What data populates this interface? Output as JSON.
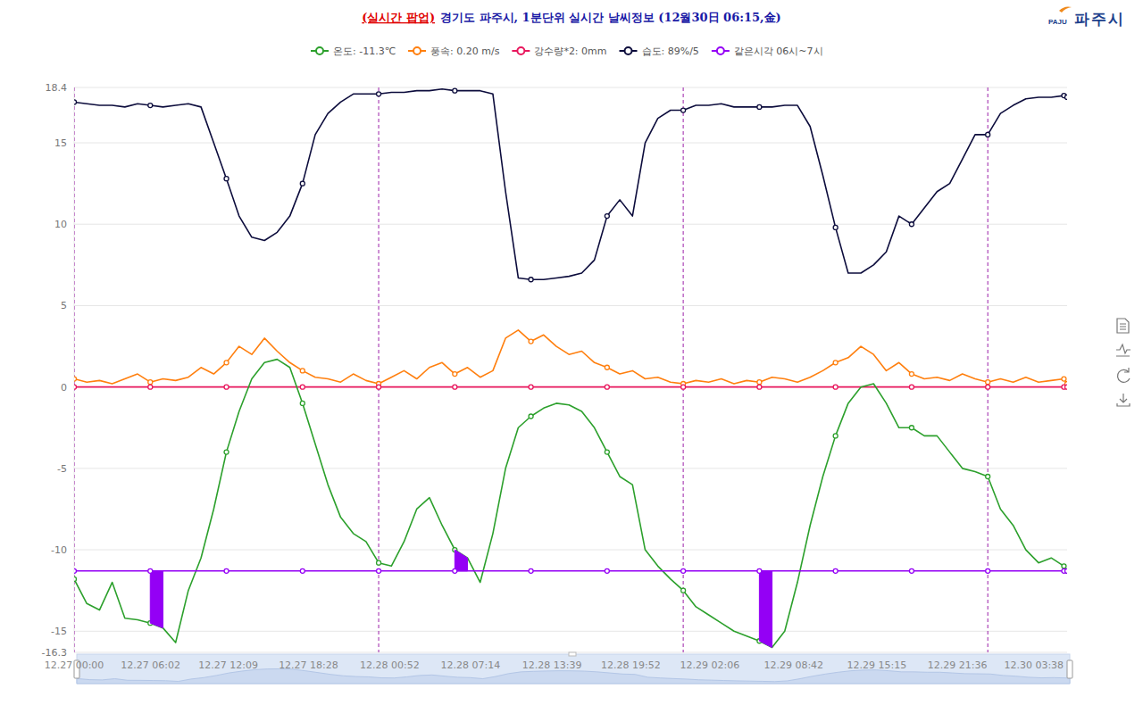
{
  "chart_data": {
    "type": "line",
    "title_prefix": "(실시간 팝업)",
    "title": "경기도 파주시, 1분단위 실시간 날씨정보 (12월30日 06:15,金)",
    "logo_mark": "PAJU",
    "logo_text": "파주시",
    "grid": true,
    "legend": "top",
    "xlim": [
      0,
      78.25
    ],
    "ylim": [
      -16.3,
      18.4
    ],
    "yticks": [
      -16.3,
      -15,
      -10,
      -5,
      0,
      5,
      10,
      15,
      18.4
    ],
    "xticks": [
      {
        "value": 0,
        "label": "12.27 00:00"
      },
      {
        "value": 6.03,
        "label": "12.27 06:02"
      },
      {
        "value": 12.15,
        "label": "12.27 12:09"
      },
      {
        "value": 18.47,
        "label": "12.27 18:28"
      },
      {
        "value": 24.87,
        "label": "12.28 00:52"
      },
      {
        "value": 31.23,
        "label": "12.28 07:14"
      },
      {
        "value": 37.65,
        "label": "12.28 13:39"
      },
      {
        "value": 43.87,
        "label": "12.28 19:52"
      },
      {
        "value": 50.1,
        "label": "12.29 02:06"
      },
      {
        "value": 56.7,
        "label": "12.29 08:42"
      },
      {
        "value": 63.25,
        "label": "12.29 15:15"
      },
      {
        "value": 69.6,
        "label": "12.29 21:36"
      },
      {
        "value": 75.63,
        "label": "12.30 03:38"
      }
    ],
    "day_lines": [
      0,
      24,
      48,
      72
    ],
    "x": [
      0,
      1,
      2,
      3,
      4,
      5,
      6,
      7,
      8,
      9,
      10,
      11,
      12,
      13,
      14,
      15,
      16,
      17,
      18,
      19,
      20,
      21,
      22,
      23,
      24,
      25,
      26,
      27,
      28,
      29,
      30,
      31,
      32,
      33,
      34,
      35,
      36,
      37,
      38,
      39,
      40,
      41,
      42,
      43,
      44,
      45,
      46,
      47,
      48,
      49,
      50,
      51,
      52,
      53,
      54,
      55,
      56,
      57,
      58,
      59,
      60,
      61,
      62,
      63,
      64,
      65,
      66,
      67,
      68,
      69,
      70,
      71,
      72,
      73,
      74,
      75,
      76,
      77,
      78,
      78.25
    ],
    "series": [
      {
        "name": "온도: -11.3℃",
        "color": "#2ca02c",
        "marker": "circle",
        "values": [
          -11.8,
          -13.3,
          -13.7,
          -12.0,
          -14.2,
          -14.3,
          -14.5,
          -14.8,
          -15.7,
          -12.5,
          -10.5,
          -7.5,
          -4.0,
          -1.5,
          0.5,
          1.5,
          1.7,
          1.2,
          -1.0,
          -3.5,
          -6.0,
          -8.0,
          -9.0,
          -9.5,
          -10.8,
          -11.0,
          -9.5,
          -7.5,
          -6.8,
          -8.5,
          -10.0,
          -10.5,
          -12.0,
          -9.0,
          -5.0,
          -2.5,
          -1.8,
          -1.3,
          -1.0,
          -1.1,
          -1.5,
          -2.5,
          -4.0,
          -5.5,
          -6.0,
          -10.0,
          -11.0,
          -11.8,
          -12.5,
          -13.5,
          -14.0,
          -14.5,
          -15.0,
          -15.3,
          -15.6,
          -16.0,
          -15.0,
          -12.0,
          -8.5,
          -5.5,
          -3.0,
          -1.0,
          0.0,
          0.2,
          -1.0,
          -2.5,
          -2.5,
          -3.0,
          -3.0,
          -4.0,
          -5.0,
          -5.2,
          -5.5,
          -7.5,
          -8.5,
          -10.0,
          -10.8,
          -10.5,
          -11.0,
          -11.3
        ]
      },
      {
        "name": "풍속: 0.20 m/s",
        "color": "#ff7f0e",
        "marker": "circle",
        "values": [
          0.5,
          0.3,
          0.4,
          0.2,
          0.5,
          0.8,
          0.3,
          0.5,
          0.4,
          0.6,
          1.2,
          0.8,
          1.5,
          2.5,
          2.0,
          3.0,
          2.2,
          1.5,
          1.0,
          0.6,
          0.5,
          0.3,
          0.8,
          0.4,
          0.2,
          0.6,
          1.0,
          0.5,
          1.2,
          1.5,
          0.8,
          1.2,
          0.6,
          1.0,
          3.0,
          3.5,
          2.8,
          3.2,
          2.5,
          2.0,
          2.2,
          1.5,
          1.2,
          0.8,
          1.0,
          0.5,
          0.6,
          0.3,
          0.2,
          0.4,
          0.3,
          0.5,
          0.2,
          0.4,
          0.3,
          0.6,
          0.5,
          0.3,
          0.6,
          1.0,
          1.5,
          1.8,
          2.5,
          2.0,
          1.0,
          1.5,
          0.8,
          0.5,
          0.6,
          0.4,
          0.8,
          0.5,
          0.3,
          0.5,
          0.3,
          0.6,
          0.3,
          0.4,
          0.5,
          0.2
        ]
      },
      {
        "name": "강수량*2: 0mm",
        "color": "#e8175d",
        "marker": "circle",
        "values": [
          0,
          0,
          0,
          0,
          0,
          0,
          0,
          0,
          0,
          0,
          0,
          0,
          0,
          0,
          0,
          0,
          0,
          0,
          0,
          0,
          0,
          0,
          0,
          0,
          0,
          0,
          0,
          0,
          0,
          0,
          0,
          0,
          0,
          0,
          0,
          0,
          0,
          0,
          0,
          0,
          0,
          0,
          0,
          0,
          0,
          0,
          0,
          0,
          0,
          0,
          0,
          0,
          0,
          0,
          0,
          0,
          0,
          0,
          0,
          0,
          0,
          0,
          0,
          0,
          0,
          0,
          0,
          0,
          0,
          0,
          0,
          0,
          0,
          0,
          0,
          0,
          0,
          0,
          0,
          0
        ]
      },
      {
        "name": "습도: 89%/5",
        "color": "#0c0c3c",
        "marker": "circle",
        "values": [
          17.5,
          17.4,
          17.3,
          17.3,
          17.2,
          17.4,
          17.3,
          17.2,
          17.3,
          17.4,
          17.2,
          15.0,
          12.8,
          10.5,
          9.2,
          9.0,
          9.5,
          10.5,
          12.5,
          15.5,
          16.8,
          17.5,
          18.0,
          18.0,
          18.0,
          18.1,
          18.1,
          18.2,
          18.2,
          18.3,
          18.2,
          18.2,
          18.2,
          18.0,
          12.0,
          6.7,
          6.6,
          6.6,
          6.7,
          6.8,
          7.0,
          7.8,
          10.5,
          11.5,
          10.5,
          15.0,
          16.5,
          17.0,
          17.0,
          17.3,
          17.3,
          17.4,
          17.2,
          17.2,
          17.2,
          17.2,
          17.3,
          17.3,
          16.0,
          13.0,
          9.8,
          7.0,
          7.0,
          7.5,
          8.3,
          10.5,
          10.0,
          11.0,
          12.0,
          12.5,
          14.0,
          15.5,
          15.5,
          16.8,
          17.3,
          17.7,
          17.8,
          17.8,
          17.9,
          17.8
        ]
      },
      {
        "name": "같은시각 06시~7시",
        "color": "#9400f5",
        "marker": "circle",
        "ranges": [
          [
            6,
            7
          ],
          [
            30,
            31
          ],
          [
            54,
            55
          ]
        ],
        "values": [
          -11.3,
          -11.3,
          -11.3,
          -11.3,
          -11.3,
          -11.3,
          -11.3,
          -11.3,
          -11.3,
          -11.3,
          -11.3,
          -11.3,
          -11.3,
          -11.3,
          -11.3,
          -11.3,
          -11.3,
          -11.3,
          -11.3,
          -11.3,
          -11.3,
          -11.3,
          -11.3,
          -11.3,
          -11.3,
          -11.3,
          -11.3,
          -11.3,
          -11.3,
          -11.3,
          -11.3,
          -11.3,
          -11.3,
          -11.3,
          -11.3,
          -11.3,
          -11.3,
          -11.3,
          -11.3,
          -11.3,
          -11.3,
          -11.3,
          -11.3,
          -11.3,
          -11.3,
          -11.3,
          -11.3,
          -11.3,
          -11.3,
          -11.3,
          -11.3,
          -11.3,
          -11.3,
          -11.3,
          -11.3,
          -11.3,
          -11.3,
          -11.3,
          -11.3,
          -11.3,
          -11.3,
          -11.3,
          -11.3,
          -11.3,
          -11.3,
          -11.3,
          -11.3,
          -11.3,
          -11.3,
          -11.3,
          -11.3,
          -11.3,
          -11.3,
          -11.3,
          -11.3,
          -11.3,
          -11.3,
          -11.3,
          -11.3,
          -11.3
        ]
      }
    ]
  }
}
